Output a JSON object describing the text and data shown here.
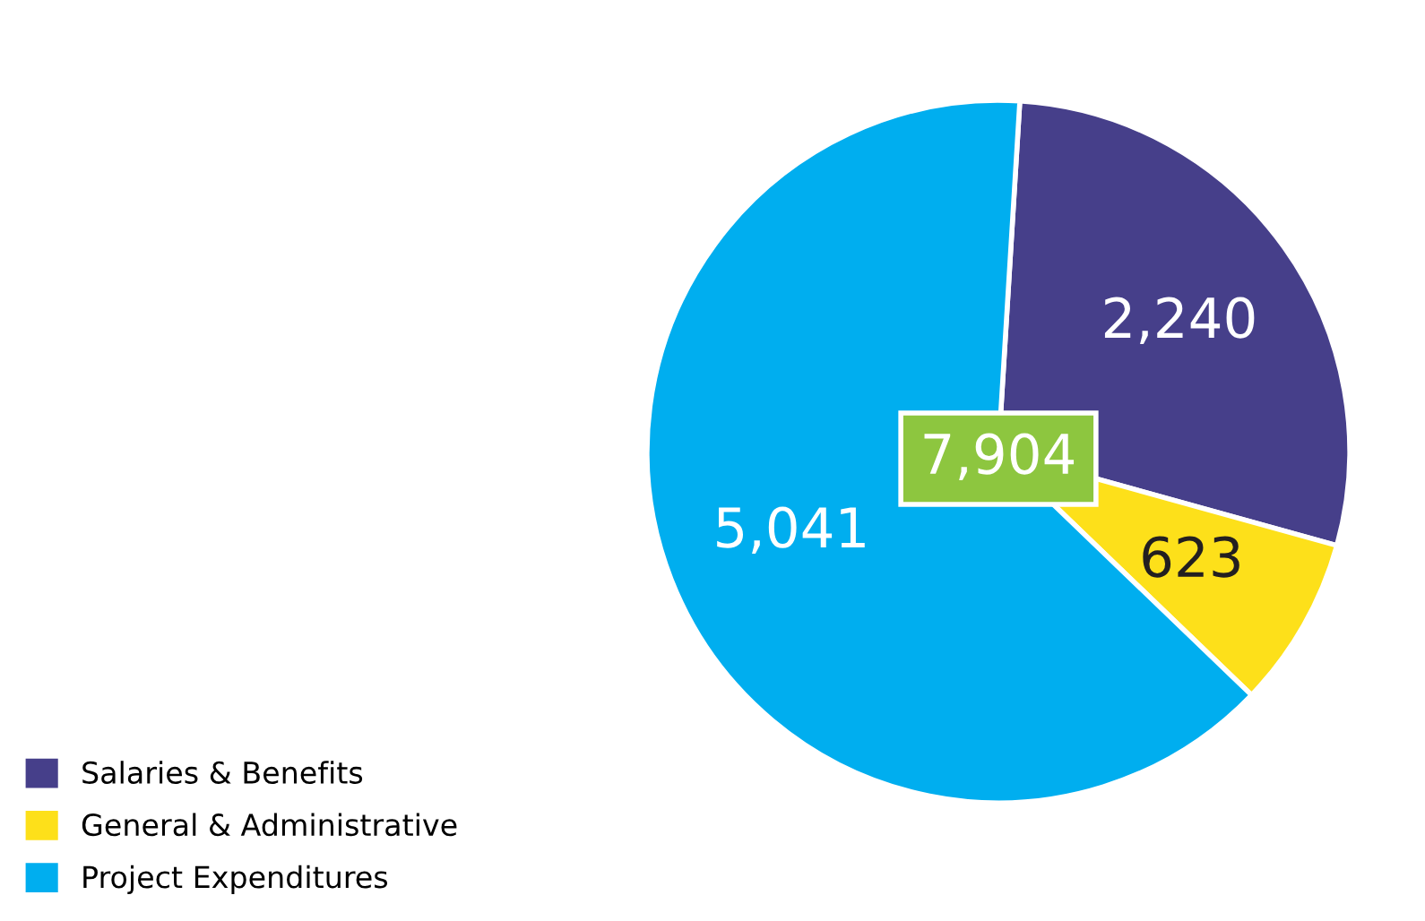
{
  "chart_data": {
    "type": "pie",
    "categories": [
      "Salaries & Benefits",
      "General & Administrative",
      "Project Expenditures"
    ],
    "values": [
      2240,
      623,
      5041
    ],
    "colors": [
      "#463f8a",
      "#fde01a",
      "#00aeef"
    ],
    "value_labels": [
      "2,240",
      "623",
      "5,041"
    ],
    "annotations": [
      "7,904"
    ],
    "legend": "bottom left"
  }
}
